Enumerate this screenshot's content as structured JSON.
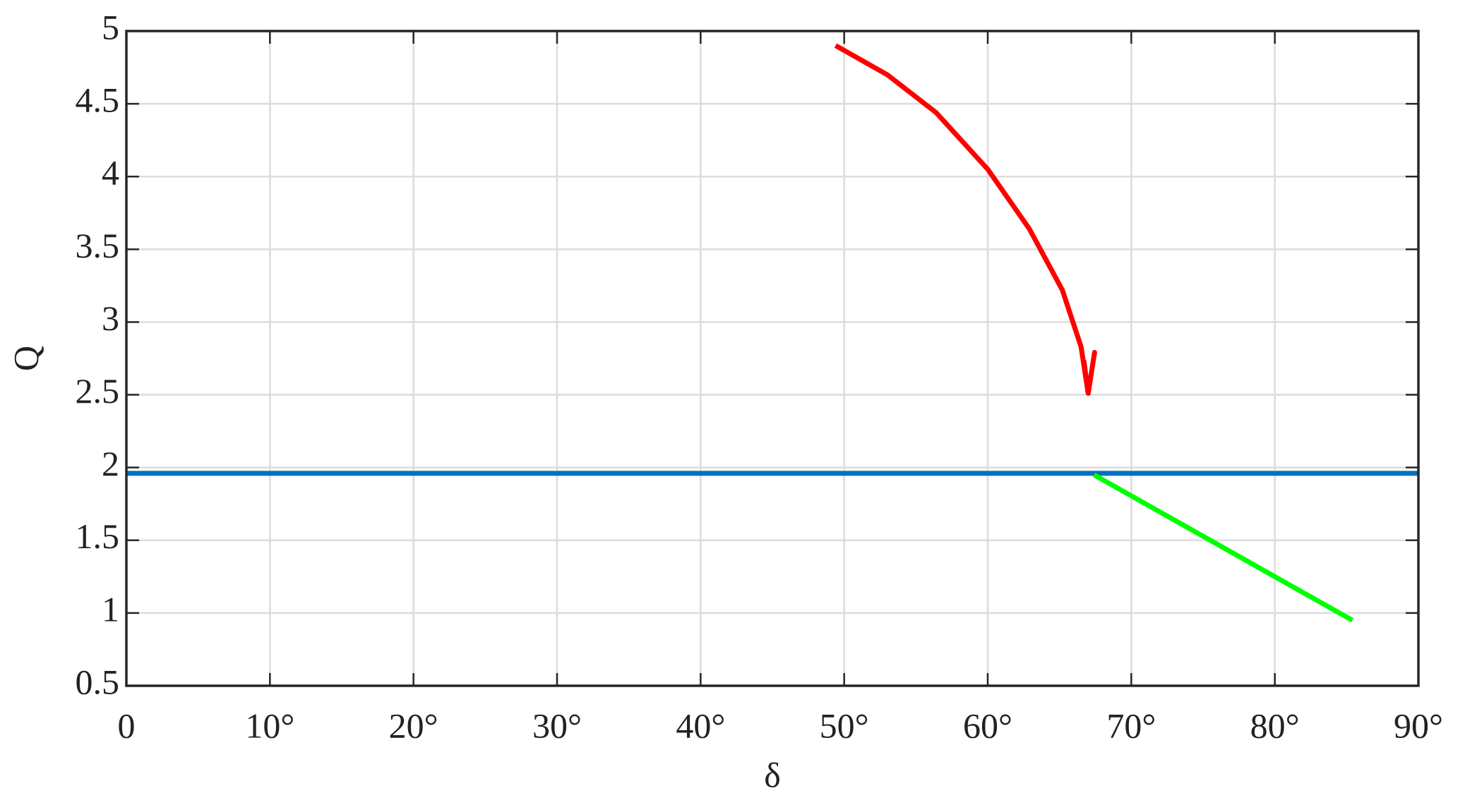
{
  "chart_data": {
    "type": "line",
    "xlabel": "δ",
    "ylabel": "Q",
    "xlim": [
      0,
      90
    ],
    "ylim": [
      0.5,
      5
    ],
    "xticks": [
      0,
      {
        "value": 10,
        "label": "10°"
      },
      {
        "value": 20,
        "label": "20°"
      },
      {
        "value": 30,
        "label": "30°"
      },
      {
        "value": 40,
        "label": "40°"
      },
      {
        "value": 50,
        "label": "50°"
      },
      {
        "value": 60,
        "label": "60°"
      },
      {
        "value": 70,
        "label": "70°"
      },
      {
        "value": 80,
        "label": "80°"
      },
      {
        "value": 90,
        "label": "90°"
      }
    ],
    "yticks": [
      0.5,
      1,
      1.5,
      2,
      2.5,
      3,
      3.5,
      4,
      4.5,
      5
    ],
    "grid": true,
    "series": [
      {
        "color": "#0072bd",
        "x": [
          0,
          90
        ],
        "values": [
          1.96,
          1.96
        ]
      },
      {
        "color": "#00ff00",
        "x": [
          67.4,
          85.4
        ],
        "values": [
          1.95,
          0.95
        ]
      },
      {
        "color": "#ff0000",
        "arrow": true,
        "x": [
          49.4,
          53.0,
          56.4,
          60.0,
          62.9,
          65.2,
          66.5,
          67.0
        ],
        "values": [
          4.9,
          4.7,
          4.44,
          4.05,
          3.64,
          3.22,
          2.83,
          2.51
        ]
      }
    ]
  }
}
